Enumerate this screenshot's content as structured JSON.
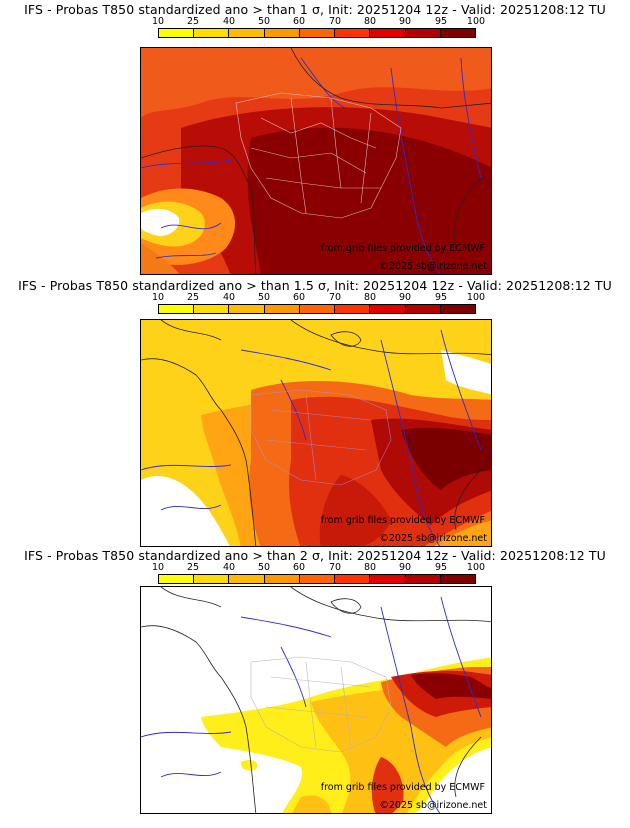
{
  "panels": [
    {
      "title": "IFS - Probas T850  standardized ano > than 1 σ, Init: 20251204 12z - Valid: 20251208:12 TU",
      "credit_source": "from grib files provided by ECMWF",
      "credit_copyright": "©2025 sb@irizone.net"
    },
    {
      "title": "IFS - Probas T850  standardized ano > than 1.5 σ, Init: 20251204 12z - Valid: 20251208:12 TU",
      "credit_source": "from grib files provided by ECMWF",
      "credit_copyright": "©2025 sb@irizone.net"
    },
    {
      "title": "IFS - Probas T850  standardized ano > than 2 σ, Init: 20251204 12z - Valid: 20251208:12 TU",
      "credit_source": "from grib files provided by ECMWF",
      "credit_copyright": "©2025 sb@irizone.net"
    }
  ],
  "scale": {
    "labels": [
      "10",
      "25",
      "40",
      "50",
      "60",
      "70",
      "80",
      "90",
      "95",
      "100"
    ],
    "colors": [
      "#ffff00",
      "#ffdd00",
      "#ffbb00",
      "#ff9900",
      "#ff6600",
      "#ff3300",
      "#e00000",
      "#b40000",
      "#800000"
    ]
  }
}
